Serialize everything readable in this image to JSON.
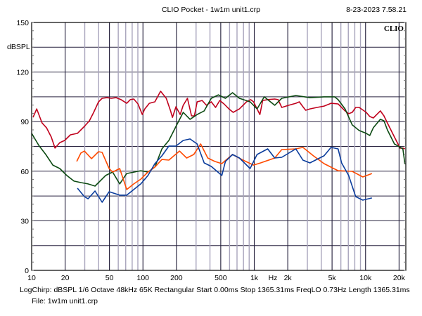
{
  "header": {
    "title": "CLIO Pocket - 1w1m  unit1.crp",
    "date": "8-23-2023 7.58.21",
    "logo": "CLIO"
  },
  "footer": {
    "params": "LogChirp:  dBSPL   1/6 Octave   48kHz   65K   Rectangular   Start 0.00ms    Stop 1365.31ms    FreqLO 0.73Hz    Length 1365.31ms",
    "file": "File: 1w1m  unit1.crp"
  },
  "chart_data": {
    "type": "line",
    "title": "CLIO Pocket - 1w1m  unit1.crp",
    "xlabel": "Hz",
    "ylabel": "dBSPL",
    "xscale": "log",
    "xlim": [
      10,
      23000
    ],
    "ylim": [
      0,
      150
    ],
    "grid": true,
    "x_ticks": [
      {
        "value": 10,
        "label": "10"
      },
      {
        "value": 20,
        "label": "20"
      },
      {
        "value": 50,
        "label": "50"
      },
      {
        "value": 100,
        "label": "100"
      },
      {
        "value": 200,
        "label": "200"
      },
      {
        "value": 500,
        "label": "500"
      },
      {
        "value": 1000,
        "label": "1k"
      },
      {
        "value": 2000,
        "label": "2k"
      },
      {
        "value": 5000,
        "label": "5k"
      },
      {
        "value": 10000,
        "label": "10k"
      },
      {
        "value": 20000,
        "label": "20k"
      }
    ],
    "y_ticks": [
      {
        "value": 0,
        "label": "0"
      },
      {
        "value": 30,
        "label": "30"
      },
      {
        "value": 60,
        "label": "60"
      },
      {
        "value": 90,
        "label": "90"
      },
      {
        "value": 120,
        "label": "120"
      },
      {
        "value": 150,
        "label": "150"
      }
    ],
    "series": [
      {
        "name": "red",
        "color": "#c0001c",
        "points": [
          [
            10.3,
            92.6
          ],
          [
            11.1,
            97.7
          ],
          [
            12.4,
            89.2
          ],
          [
            13.6,
            86.3
          ],
          [
            15,
            80.7
          ],
          [
            16.2,
            74
          ],
          [
            17.9,
            77.3
          ],
          [
            19.8,
            78.6
          ],
          [
            22.3,
            82
          ],
          [
            25.8,
            82.9
          ],
          [
            29.8,
            87.1
          ],
          [
            33,
            90.5
          ],
          [
            36.1,
            95.6
          ],
          [
            39.9,
            102
          ],
          [
            43,
            104.1
          ],
          [
            47.5,
            104.5
          ],
          [
            51.9,
            104.1
          ],
          [
            57.5,
            104.5
          ],
          [
            63.6,
            103.3
          ],
          [
            71.5,
            101.1
          ],
          [
            76.9,
            103.3
          ],
          [
            82.7,
            103.7
          ],
          [
            90.3,
            100.7
          ],
          [
            98.6,
            94.3
          ],
          [
            104,
            97.7
          ],
          [
            114,
            101.1
          ],
          [
            128,
            102
          ],
          [
            144,
            108.4
          ],
          [
            162,
            104.1
          ],
          [
            177,
            96.5
          ],
          [
            184,
            92.6
          ],
          [
            198,
            99
          ],
          [
            216,
            94.3
          ],
          [
            230,
            99.9
          ],
          [
            251,
            104.1
          ],
          [
            273,
            93.5
          ],
          [
            290,
            93.5
          ],
          [
            307,
            102
          ],
          [
            340,
            102.8
          ],
          [
            372,
            99.9
          ],
          [
            411,
            102
          ],
          [
            449,
            98.6
          ],
          [
            490,
            102.8
          ],
          [
            535,
            100.7
          ],
          [
            592,
            97.7
          ],
          [
            646,
            95.6
          ],
          [
            736,
            97.7
          ],
          [
            852,
            102
          ],
          [
            929,
            103.3
          ],
          [
            986,
            102
          ],
          [
            1060,
            97.7
          ],
          [
            1124,
            94.3
          ],
          [
            1191,
            102.8
          ],
          [
            1320,
            103.3
          ],
          [
            1527,
            103.7
          ],
          [
            1641,
            103.3
          ],
          [
            1766,
            98.6
          ],
          [
            2042,
            99.9
          ],
          [
            2362,
            101.1
          ],
          [
            2541,
            102
          ],
          [
            2735,
            99
          ],
          [
            2898,
            96.9
          ],
          [
            3162,
            97.7
          ],
          [
            3656,
            98.6
          ],
          [
            4236,
            99.4
          ],
          [
            4898,
            101.1
          ],
          [
            5662,
            100.7
          ],
          [
            6546,
            96.5
          ],
          [
            7047,
            94.8
          ],
          [
            7586,
            95.6
          ],
          [
            8150,
            98.6
          ],
          [
            8770,
            98.6
          ],
          [
            10140,
            95.6
          ],
          [
            10910,
            93.1
          ],
          [
            11750,
            92.2
          ],
          [
            12620,
            94.3
          ],
          [
            13590,
            96.5
          ],
          [
            14620,
            93.5
          ],
          [
            15700,
            89.2
          ],
          [
            18160,
            80.7
          ],
          [
            20420,
            74
          ],
          [
            21630,
            74
          ],
          [
            22600,
            73.5
          ]
        ]
      },
      {
        "name": "green",
        "color": "#0c4a12",
        "points": [
          [
            10,
            82.9
          ],
          [
            11.6,
            75.6
          ],
          [
            13.4,
            70.1
          ],
          [
            15.5,
            63.7
          ],
          [
            17.9,
            61.6
          ],
          [
            20.7,
            57.4
          ],
          [
            24,
            54
          ],
          [
            27.7,
            53.1
          ],
          [
            32.1,
            52.3
          ],
          [
            37.1,
            51
          ],
          [
            46.2,
            57.4
          ],
          [
            53.4,
            59.5
          ],
          [
            61.8,
            52.3
          ],
          [
            71.5,
            58.6
          ],
          [
            95.6,
            60.3
          ],
          [
            111,
            59.5
          ],
          [
            128,
            62.5
          ],
          [
            148,
            73.5
          ],
          [
            171,
            78.6
          ],
          [
            198,
            87.1
          ],
          [
            230,
            95.6
          ],
          [
            265,
            91.4
          ],
          [
            307,
            94.3
          ],
          [
            355,
            96.5
          ],
          [
            411,
            104.1
          ],
          [
            476,
            106.2
          ],
          [
            551,
            104.1
          ],
          [
            638,
            107.5
          ],
          [
            736,
            104.1
          ],
          [
            918,
            102
          ],
          [
            1060,
            97.7
          ],
          [
            1229,
            105
          ],
          [
            1527,
            99.9
          ],
          [
            1766,
            104.1
          ],
          [
            2362,
            105.8
          ],
          [
            3162,
            104.5
          ],
          [
            4236,
            105
          ],
          [
            5272,
            105
          ],
          [
            5662,
            103.3
          ],
          [
            6546,
            97.7
          ],
          [
            7586,
            88
          ],
          [
            8770,
            84.6
          ],
          [
            10140,
            82.9
          ],
          [
            10910,
            81.6
          ],
          [
            11750,
            86.3
          ],
          [
            13590,
            91.4
          ],
          [
            14620,
            90.5
          ],
          [
            15700,
            85
          ],
          [
            18160,
            76.5
          ],
          [
            21630,
            73.5
          ],
          [
            22600,
            64.2
          ]
        ]
      },
      {
        "name": "orange",
        "color": "#ff4a00",
        "points": [
          [
            25.4,
            65.9
          ],
          [
            27.7,
            71
          ],
          [
            29.8,
            72.2
          ],
          [
            34.5,
            67.6
          ],
          [
            39.9,
            71.8
          ],
          [
            43,
            71.4
          ],
          [
            49.7,
            61.6
          ],
          [
            53.4,
            59.5
          ],
          [
            61.8,
            61.6
          ],
          [
            71.5,
            48.9
          ],
          [
            82.7,
            52.3
          ],
          [
            95.7,
            55.2
          ],
          [
            111,
            59.5
          ],
          [
            128,
            62.5
          ],
          [
            148,
            67.1
          ],
          [
            171,
            66.7
          ],
          [
            213,
            72.2
          ],
          [
            247,
            68
          ],
          [
            286,
            70.1
          ],
          [
            330,
            76.5
          ],
          [
            382,
            68
          ],
          [
            442,
            65.9
          ],
          [
            511,
            64.6
          ],
          [
            637,
            70.1
          ],
          [
            792,
            66.7
          ],
          [
            986,
            63.7
          ],
          [
            1140,
            65
          ],
          [
            1527,
            68
          ],
          [
            1766,
            73.1
          ],
          [
            2362,
            73.5
          ],
          [
            2735,
            74.4
          ],
          [
            3401,
            69.3
          ],
          [
            4236,
            64.6
          ],
          [
            5662,
            60.3
          ],
          [
            7586,
            59.9
          ],
          [
            9440,
            56.5
          ],
          [
            11400,
            58.6
          ]
        ]
      },
      {
        "name": "blue",
        "color": "#0a3c9c",
        "points": [
          [
            25.8,
            49.7
          ],
          [
            29.8,
            44.6
          ],
          [
            32.1,
            43.3
          ],
          [
            37.1,
            48
          ],
          [
            43,
            41.2
          ],
          [
            49.7,
            47.6
          ],
          [
            61.8,
            45.5
          ],
          [
            71.5,
            45.5
          ],
          [
            82.7,
            48.9
          ],
          [
            95.7,
            52.3
          ],
          [
            111,
            57.4
          ],
          [
            128,
            64.6
          ],
          [
            148,
            69.3
          ],
          [
            171,
            75.2
          ],
          [
            198,
            75.2
          ],
          [
            230,
            78.6
          ],
          [
            265,
            79.5
          ],
          [
            307,
            76.5
          ],
          [
            355,
            65
          ],
          [
            411,
            62.9
          ],
          [
            511,
            57.4
          ],
          [
            551,
            65.9
          ],
          [
            638,
            70.1
          ],
          [
            736,
            68
          ],
          [
            918,
            61.6
          ],
          [
            1060,
            70.1
          ],
          [
            1320,
            73.5
          ],
          [
            1527,
            68
          ],
          [
            1766,
            68.4
          ],
          [
            2362,
            73.5
          ],
          [
            2735,
            66.7
          ],
          [
            3162,
            65
          ],
          [
            4236,
            69.3
          ],
          [
            4898,
            74.4
          ],
          [
            5662,
            73.5
          ],
          [
            6095,
            65
          ],
          [
            7047,
            57.4
          ],
          [
            8150,
            44.6
          ],
          [
            9440,
            42.5
          ],
          [
            11400,
            43.8
          ]
        ]
      }
    ]
  }
}
